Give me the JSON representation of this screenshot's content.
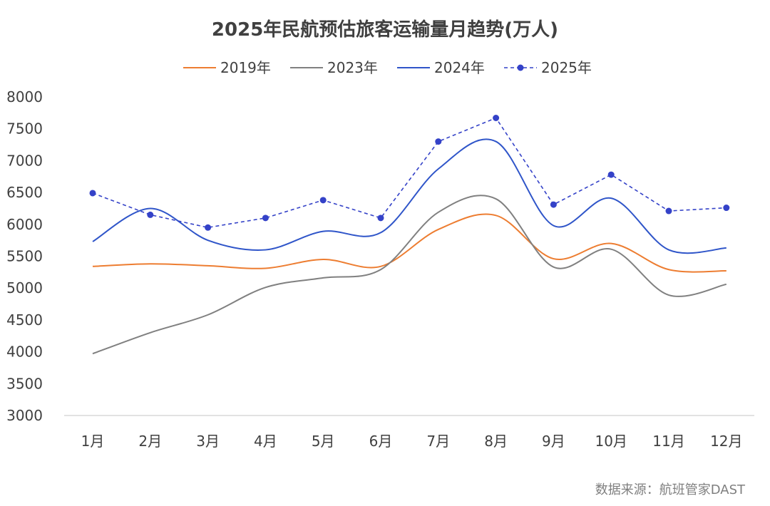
{
  "chart_data": {
    "type": "line",
    "title": "2025年民航预估旅客运输量月趋势(万人)",
    "categories": [
      "1月",
      "2月",
      "3月",
      "4月",
      "5月",
      "6月",
      "7月",
      "8月",
      "9月",
      "10月",
      "11月",
      "12月"
    ],
    "ylim": [
      3000,
      8000
    ],
    "yticks": [
      "8000",
      "7500",
      "7000",
      "6500",
      "6000",
      "5500",
      "5000",
      "4500",
      "4000",
      "3500",
      "3000"
    ],
    "grid": false,
    "legend_position": "top",
    "series": [
      {
        "name": "2019年",
        "color": "#ED7D31",
        "style": "solid",
        "markers": false,
        "values": [
          5340,
          5380,
          5350,
          5310,
          5450,
          5340,
          5920,
          6140,
          5460,
          5700,
          5290,
          5270
        ]
      },
      {
        "name": "2023年",
        "color": "#808080",
        "style": "solid",
        "markers": false,
        "values": [
          3970,
          4300,
          4580,
          5010,
          5160,
          5290,
          6190,
          6400,
          5330,
          5610,
          4890,
          5060
        ]
      },
      {
        "name": "2024年",
        "color": "#2F55C9",
        "style": "solid",
        "markers": false,
        "values": [
          5730,
          6250,
          5750,
          5600,
          5890,
          5870,
          6870,
          7300,
          5980,
          6410,
          5600,
          5630
        ]
      },
      {
        "name": "2025年",
        "color": "#3442C8",
        "style": "dashed",
        "markers": true,
        "values": [
          6490,
          6150,
          5950,
          6100,
          6380,
          6100,
          7300,
          7670,
          6310,
          6780,
          6210,
          6260
        ]
      }
    ]
  },
  "source_note": "数据来源：航班管家DAST"
}
